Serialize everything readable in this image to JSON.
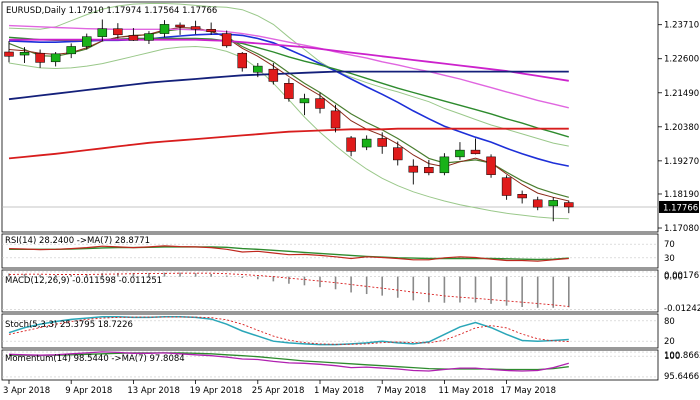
{
  "chart_data": {
    "type": "candlestick",
    "symbol_header": {
      "text": "EURUSD,Daily   1.17910 1.17974 1.17564 1.17766",
      "symbol": "EURUSD,Daily",
      "open": 1.1791,
      "high": 1.17974,
      "low": 1.17564,
      "close": 1.17766
    },
    "price_ticks": [
      "1.23710",
      "1.22600",
      "1.21490",
      "1.20380",
      "1.19270",
      "1.18190",
      "1.17080"
    ],
    "price_tick_values": [
      1.2371,
      1.226,
      1.2149,
      1.2038,
      1.1927,
      1.1819,
      1.1708
    ],
    "ylim": [
      1.1695,
      1.2445
    ],
    "last_price_label": "1.17766",
    "x_tick_labels": [
      "3 Apr 2018",
      "9 Apr 2018",
      "13 Apr 2018",
      "19 Apr 2018",
      "25 Apr 2018",
      "1 May 2018",
      "7 May 2018",
      "11 May 2018",
      "17 May 2018"
    ],
    "x_tick_index": [
      0,
      4,
      8,
      12,
      16,
      20,
      24,
      28,
      32
    ],
    "candles": [
      {
        "o": 1.2282,
        "h": 1.2318,
        "l": 1.2248,
        "c": 1.2268
      },
      {
        "o": 1.2272,
        "h": 1.2298,
        "l": 1.2246,
        "c": 1.2281
      },
      {
        "o": 1.2278,
        "h": 1.229,
        "l": 1.223,
        "c": 1.2248
      },
      {
        "o": 1.225,
        "h": 1.2282,
        "l": 1.2235,
        "c": 1.2276
      },
      {
        "o": 1.2276,
        "h": 1.231,
        "l": 1.2262,
        "c": 1.23
      },
      {
        "o": 1.23,
        "h": 1.2342,
        "l": 1.229,
        "c": 1.2332
      },
      {
        "o": 1.2332,
        "h": 1.2388,
        "l": 1.2316,
        "c": 1.2358
      },
      {
        "o": 1.2358,
        "h": 1.2376,
        "l": 1.2326,
        "c": 1.2338
      },
      {
        "o": 1.2336,
        "h": 1.236,
        "l": 1.2318,
        "c": 1.232
      },
      {
        "o": 1.232,
        "h": 1.235,
        "l": 1.2308,
        "c": 1.2342
      },
      {
        "o": 1.2342,
        "h": 1.2386,
        "l": 1.233,
        "c": 1.2372
      },
      {
        "o": 1.237,
        "h": 1.2378,
        "l": 1.2338,
        "c": 1.2364
      },
      {
        "o": 1.2365,
        "h": 1.2384,
        "l": 1.234,
        "c": 1.2356
      },
      {
        "o": 1.2356,
        "h": 1.2378,
        "l": 1.2338,
        "c": 1.2348
      },
      {
        "o": 1.2342,
        "h": 1.2352,
        "l": 1.2296,
        "c": 1.2302
      },
      {
        "o": 1.2278,
        "h": 1.2282,
        "l": 1.2218,
        "c": 1.223
      },
      {
        "o": 1.2216,
        "h": 1.2246,
        "l": 1.22,
        "c": 1.2236
      },
      {
        "o": 1.2226,
        "h": 1.2246,
        "l": 1.2176,
        "c": 1.2186
      },
      {
        "o": 1.218,
        "h": 1.2196,
        "l": 1.212,
        "c": 1.213
      },
      {
        "o": 1.2116,
        "h": 1.2146,
        "l": 1.2076,
        "c": 1.213
      },
      {
        "o": 1.213,
        "h": 1.215,
        "l": 1.2082,
        "c": 1.2098
      },
      {
        "o": 1.209,
        "h": 1.211,
        "l": 1.202,
        "c": 1.2034
      },
      {
        "o": 1.2002,
        "h": 1.2008,
        "l": 1.1942,
        "c": 1.1958
      },
      {
        "o": 1.1972,
        "h": 1.201,
        "l": 1.1962,
        "c": 1.1998
      },
      {
        "o": 1.2,
        "h": 1.202,
        "l": 1.195,
        "c": 1.1974
      },
      {
        "o": 1.197,
        "h": 1.199,
        "l": 1.1912,
        "c": 1.193
      },
      {
        "o": 1.191,
        "h": 1.1932,
        "l": 1.185,
        "c": 1.189
      },
      {
        "o": 1.1906,
        "h": 1.193,
        "l": 1.188,
        "c": 1.1888
      },
      {
        "o": 1.1888,
        "h": 1.1952,
        "l": 1.188,
        "c": 1.194
      },
      {
        "o": 1.194,
        "h": 1.1988,
        "l": 1.193,
        "c": 1.1962
      },
      {
        "o": 1.1962,
        "h": 1.2,
        "l": 1.1948,
        "c": 1.195
      },
      {
        "o": 1.194,
        "h": 1.1948,
        "l": 1.1872,
        "c": 1.1882
      },
      {
        "o": 1.1872,
        "h": 1.188,
        "l": 1.18,
        "c": 1.1814
      },
      {
        "o": 1.1818,
        "h": 1.183,
        "l": 1.1788,
        "c": 1.1806
      },
      {
        "o": 1.18,
        "h": 1.181,
        "l": 1.1766,
        "c": 1.1776
      },
      {
        "o": 1.178,
        "h": 1.1808,
        "l": 1.173,
        "c": 1.1798
      },
      {
        "o": 1.1791,
        "h": 1.17974,
        "l": 1.17564,
        "c": 1.17766
      }
    ],
    "overlays": [
      {
        "color": "#4a7d2f",
        "width": 1.2,
        "values": [
          1.231,
          1.229,
          1.227,
          1.2268,
          1.2278,
          1.2292,
          1.2318,
          1.233,
          1.2336,
          1.2338,
          1.235,
          1.2356,
          1.2356,
          1.2348,
          1.2332,
          1.23,
          1.2276,
          1.225,
          1.2214,
          1.218,
          1.215,
          1.2115,
          1.208,
          1.2052,
          1.2028,
          1.2,
          1.1968,
          1.1935,
          1.192,
          1.1925,
          1.193,
          1.192,
          1.189,
          1.1862,
          1.1838,
          1.1822,
          1.1808
        ]
      },
      {
        "color": "#8b2a1a",
        "width": 1,
        "values": [
          1.229,
          1.2286,
          1.2278,
          1.2274,
          1.228,
          1.2296,
          1.2318,
          1.233,
          1.2334,
          1.234,
          1.2354,
          1.2362,
          1.236,
          1.235,
          1.2328,
          1.2294,
          1.2268,
          1.2236,
          1.2202,
          1.217,
          1.214,
          1.21,
          1.2058,
          1.203,
          1.201,
          1.1982,
          1.1946,
          1.1918,
          1.1908,
          1.1924,
          1.1936,
          1.192,
          1.1884,
          1.185,
          1.1822,
          1.1808,
          1.1796
        ]
      },
      {
        "color": "#9ac88a",
        "width": 1,
        "values": [
          1.236,
          1.2358,
          1.2356,
          1.2364,
          1.2384,
          1.2404,
          1.2422,
          1.2432,
          1.2438,
          1.244,
          1.244,
          1.2438,
          1.2434,
          1.243,
          1.2428,
          1.242,
          1.24,
          1.2372,
          1.233,
          1.229,
          1.225,
          1.222,
          1.22,
          1.2182,
          1.2166,
          1.2152,
          1.2136,
          1.212,
          1.2098,
          1.208,
          1.2062,
          1.2044,
          1.203,
          1.2015,
          1.2,
          1.1985,
          1.1975
        ]
      },
      {
        "color": "#9ac88a",
        "width": 1,
        "values": [
          1.2246,
          1.2238,
          1.223,
          1.2228,
          1.223,
          1.2236,
          1.2244,
          1.2256,
          1.2268,
          1.228,
          1.2292,
          1.2298,
          1.23,
          1.2296,
          1.2284,
          1.2264,
          1.2228,
          1.218,
          1.2126,
          1.207,
          1.202,
          1.1976,
          1.1936,
          1.19,
          1.187,
          1.1846,
          1.1826,
          1.181,
          1.1796,
          1.1784,
          1.1774,
          1.1764,
          1.1756,
          1.175,
          1.1744,
          1.174,
          1.1738
        ]
      },
      {
        "color": "#1d2fd8",
        "width": 1.6,
        "values": [
          1.2318,
          1.2316,
          1.2314,
          1.2314,
          1.2316,
          1.2318,
          1.232,
          1.232,
          1.2322,
          1.2324,
          1.233,
          1.2334,
          1.2338,
          1.234,
          1.234,
          1.2336,
          1.2326,
          1.2312,
          1.229,
          1.2268,
          1.2244,
          1.222,
          1.2194,
          1.2168,
          1.2144,
          1.2118,
          1.209,
          1.2064,
          1.204,
          1.2022,
          1.2004,
          1.1988,
          1.1968,
          1.195,
          1.1934,
          1.192,
          1.191
        ]
      },
      {
        "color": "#2e8b2e",
        "width": 1.4,
        "values": [
          1.233,
          1.2326,
          1.2322,
          1.232,
          1.232,
          1.232,
          1.2322,
          1.2324,
          1.2326,
          1.2326,
          1.2326,
          1.2326,
          1.2326,
          1.2324,
          1.2318,
          1.231,
          1.2296,
          1.2282,
          1.2266,
          1.2252,
          1.224,
          1.2226,
          1.2212,
          1.2196,
          1.218,
          1.2164,
          1.215,
          1.2136,
          1.2122,
          1.2108,
          1.2094,
          1.208,
          1.2064,
          1.205,
          1.2034,
          1.202,
          1.2005
        ]
      },
      {
        "color": "#e066e0",
        "width": 1.4,
        "values": [
          1.2368,
          1.2366,
          1.2364,
          1.2362,
          1.236,
          1.2358,
          1.2357,
          1.2356,
          1.2356,
          1.2356,
          1.2356,
          1.2356,
          1.2354,
          1.2352,
          1.2348,
          1.2342,
          1.2334,
          1.2324,
          1.2314,
          1.2304,
          1.2294,
          1.2282,
          1.2272,
          1.2262,
          1.225,
          1.224,
          1.2228,
          1.2218,
          1.2206,
          1.2194,
          1.218,
          1.2166,
          1.2152,
          1.2138,
          1.2124,
          1.2112,
          1.21
        ]
      },
      {
        "color": "#cc22cc",
        "width": 1.8,
        "values": [
          1.2322,
          1.2322,
          1.2322,
          1.2322,
          1.2322,
          1.2322,
          1.2322,
          1.2322,
          1.2322,
          1.2322,
          1.2322,
          1.2322,
          1.2322,
          1.232,
          1.2318,
          1.2314,
          1.231,
          1.2306,
          1.2302,
          1.2298,
          1.2292,
          1.2286,
          1.228,
          1.2274,
          1.2268,
          1.2262,
          1.2256,
          1.225,
          1.2244,
          1.2238,
          1.2232,
          1.2226,
          1.222,
          1.2212,
          1.2204,
          1.2196,
          1.2188
        ]
      },
      {
        "color": "#14207a",
        "width": 1.8,
        "values": [
          1.2128,
          1.2134,
          1.214,
          1.2146,
          1.2152,
          1.2158,
          1.2164,
          1.217,
          1.2176,
          1.2182,
          1.2186,
          1.219,
          1.2194,
          1.2198,
          1.2202,
          1.2206,
          1.2208,
          1.221,
          1.2212,
          1.2214,
          1.2216,
          1.2218,
          1.2218,
          1.2218,
          1.2218,
          1.2218,
          1.2218,
          1.2218,
          1.2218,
          1.2218,
          1.2218,
          1.2218,
          1.2218,
          1.2218,
          1.2218,
          1.2218,
          1.2218
        ]
      },
      {
        "color": "#d81d1d",
        "width": 1.8,
        "values": [
          1.1935,
          1.194,
          1.1945,
          1.195,
          1.1956,
          1.1962,
          1.1968,
          1.1974,
          1.198,
          1.1986,
          1.199,
          1.1994,
          1.1998,
          1.2002,
          1.2006,
          1.201,
          1.2014,
          1.2018,
          1.2022,
          1.2024,
          1.2026,
          1.2028,
          1.203,
          1.203,
          1.203,
          1.2032,
          1.2032,
          1.2032,
          1.2032,
          1.2032,
          1.2032,
          1.2032,
          1.2032,
          1.2032,
          1.2032,
          1.2032,
          1.2032
        ]
      }
    ],
    "rsi": {
      "label": "RSI(14) 28.2400  ->MA(7) 28.8771",
      "ticks": [
        "70",
        "30"
      ],
      "tick_values": [
        70,
        30
      ],
      "ylim": [
        0,
        100
      ],
      "rsi": [
        57,
        56,
        54,
        55,
        57,
        60,
        64,
        62,
        60,
        62,
        65,
        63,
        62,
        60,
        55,
        47,
        49,
        44,
        39,
        40,
        37,
        33,
        28,
        33,
        31,
        28,
        24,
        24,
        30,
        33,
        31,
        26,
        22,
        22,
        20,
        24,
        28
      ],
      "ma": [
        55,
        55,
        55,
        55,
        56,
        57,
        59,
        60,
        60,
        61,
        62,
        62,
        62,
        62,
        61,
        57,
        55,
        52,
        49,
        46,
        43,
        40,
        37,
        34,
        32,
        30,
        29,
        28,
        28,
        28,
        28,
        28,
        27,
        26,
        25,
        26,
        29
      ]
    },
    "macd": {
      "label": "MACD(12,26,9) -0.011598 -0.011251",
      "ticks": [
        "0.001767",
        "0.00",
        "-0.012423"
      ],
      "tick_values": [
        0.001767,
        0.0,
        -0.012423
      ],
      "ylim": [
        -0.0134,
        0.0025
      ],
      "hist": [
        0.0012,
        0.001,
        0.0007,
        0.0006,
        0.0007,
        0.0009,
        0.0013,
        0.0014,
        0.0014,
        0.0014,
        0.0015,
        0.0015,
        0.0013,
        0.001,
        0.0004,
        -0.0005,
        -0.001,
        -0.0018,
        -0.0027,
        -0.0033,
        -0.004,
        -0.0048,
        -0.006,
        -0.0066,
        -0.0072,
        -0.008,
        -0.009,
        -0.0097,
        -0.0099,
        -0.0098,
        -0.0098,
        -0.0103,
        -0.011,
        -0.0115,
        -0.0118,
        -0.0118,
        -0.0116
      ],
      "signal": [
        0.0008,
        0.0009,
        0.0009,
        0.0008,
        0.0008,
        0.0008,
        0.0009,
        0.001,
        0.0011,
        0.0012,
        0.0012,
        0.0013,
        0.0013,
        0.0013,
        0.0011,
        0.0008,
        0.0004,
        0.0,
        -0.0006,
        -0.0011,
        -0.0017,
        -0.0023,
        -0.003,
        -0.0037,
        -0.0044,
        -0.0051,
        -0.0059,
        -0.0066,
        -0.0073,
        -0.0078,
        -0.0082,
        -0.0087,
        -0.0092,
        -0.0097,
        -0.0102,
        -0.0107,
        -0.0113
      ]
    },
    "stoch": {
      "label": "Stoch(5,3,3) 25.3795 18.7226",
      "ticks": [
        "80",
        "20"
      ],
      "tick_values": [
        80,
        20
      ],
      "ylim": [
        0,
        100
      ],
      "k": [
        45,
        60,
        70,
        78,
        84,
        88,
        92,
        92,
        90,
        90,
        92,
        92,
        90,
        85,
        70,
        50,
        35,
        20,
        15,
        12,
        10,
        10,
        12,
        15,
        20,
        15,
        12,
        18,
        40,
        62,
        75,
        60,
        40,
        22,
        20,
        22,
        25
      ],
      "d": [
        40,
        50,
        60,
        70,
        78,
        84,
        88,
        90,
        91,
        91,
        91,
        91,
        91,
        89,
        83,
        70,
        52,
        35,
        23,
        16,
        12,
        11,
        11,
        12,
        16,
        18,
        16,
        15,
        23,
        40,
        59,
        66,
        59,
        41,
        27,
        21,
        19
      ]
    },
    "momentum": {
      "label": "Momentum(14) 98.5440  ->MA(7) 97.8084",
      "ticks": [
        "100.8662",
        "100",
        "95.6466"
      ],
      "tick_values": [
        100.8662,
        100,
        95.6466
      ],
      "ylim": [
        95.0,
        101.3
      ],
      "mom": [
        100.4,
        100.3,
        100.2,
        100.3,
        100.5,
        100.7,
        100.9,
        100.8,
        100.6,
        100.6,
        100.7,
        100.5,
        100.3,
        100.1,
        99.8,
        99.4,
        99.3,
        98.9,
        98.6,
        98.5,
        98.3,
        98.0,
        97.6,
        97.7,
        97.5,
        97.3,
        97.0,
        96.9,
        97.2,
        97.5,
        97.5,
        97.2,
        97.0,
        96.9,
        97.0,
        97.6,
        98.5
      ],
      "ma": [
        100.2,
        100.2,
        100.2,
        100.2,
        100.3,
        100.4,
        100.5,
        100.6,
        100.7,
        100.7,
        100.7,
        100.7,
        100.6,
        100.5,
        100.3,
        100.1,
        99.9,
        99.6,
        99.3,
        99.0,
        98.8,
        98.6,
        98.4,
        98.2,
        98.0,
        97.8,
        97.6,
        97.4,
        97.3,
        97.3,
        97.3,
        97.3,
        97.2,
        97.2,
        97.2,
        97.4,
        97.8
      ]
    }
  }
}
